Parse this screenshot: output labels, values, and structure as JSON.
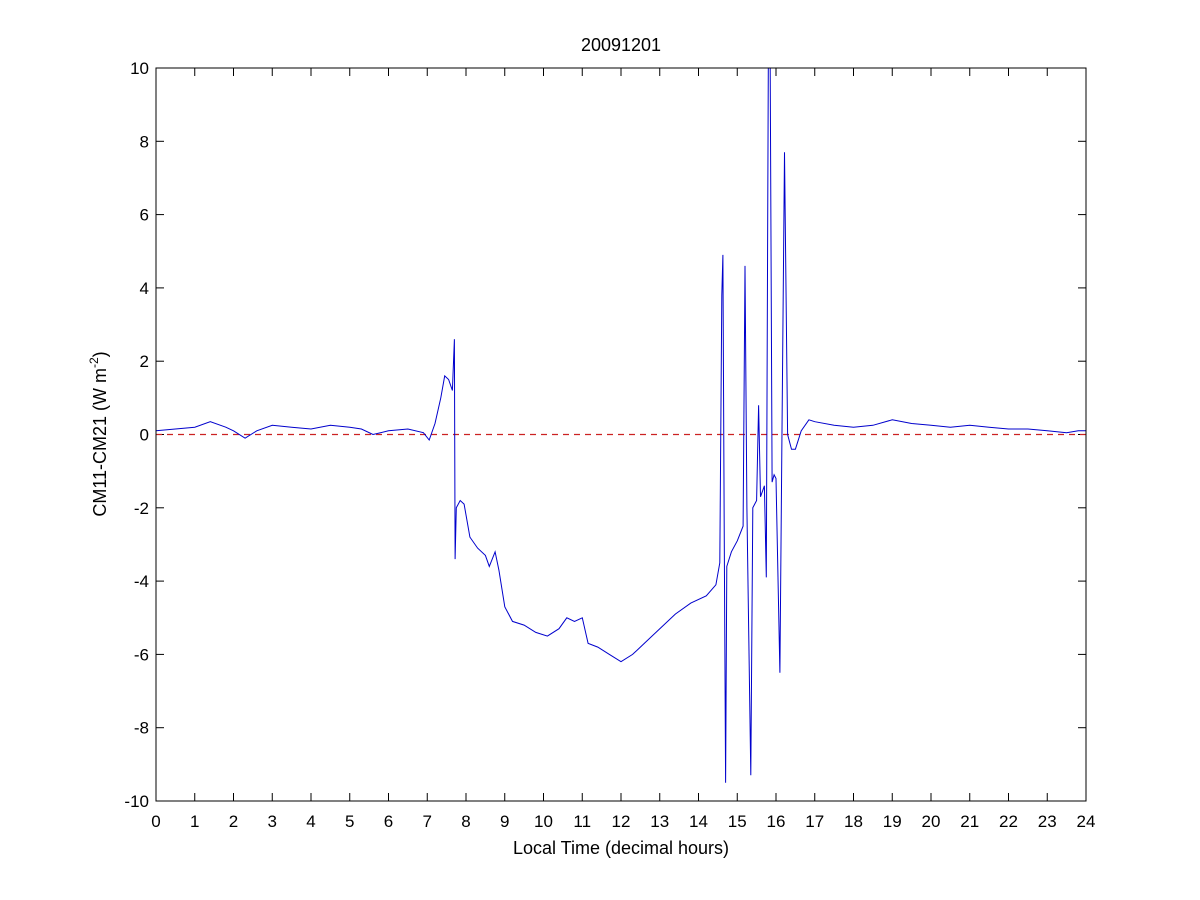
{
  "chart_data": {
    "type": "line",
    "title": "20091201",
    "xlabel": "Local Time (decimal hours)",
    "ylabel": {
      "main": "CM11-CM21 (W m",
      "superscript": "-2",
      "suffix": ")"
    },
    "xlim": [
      0,
      24
    ],
    "ylim": [
      -10,
      10
    ],
    "xticks": [
      0,
      1,
      2,
      3,
      4,
      5,
      6,
      7,
      8,
      9,
      10,
      11,
      12,
      13,
      14,
      15,
      16,
      17,
      18,
      19,
      20,
      21,
      22,
      23,
      24
    ],
    "yticks": [
      -10,
      -8,
      -6,
      -4,
      -2,
      0,
      2,
      4,
      6,
      8,
      10
    ],
    "grid": false,
    "legend": "none",
    "colors": {
      "series": "#0000cc",
      "reference": "#cc2222"
    },
    "reference_line": {
      "y": 0,
      "style": "dashed"
    },
    "series": [
      {
        "color": "#0000cc",
        "points": [
          [
            0.0,
            0.1
          ],
          [
            0.5,
            0.15
          ],
          [
            1.0,
            0.2
          ],
          [
            1.4,
            0.35
          ],
          [
            1.8,
            0.2
          ],
          [
            2.0,
            0.1
          ],
          [
            2.3,
            -0.1
          ],
          [
            2.6,
            0.1
          ],
          [
            3.0,
            0.25
          ],
          [
            3.5,
            0.2
          ],
          [
            4.0,
            0.15
          ],
          [
            4.5,
            0.25
          ],
          [
            5.0,
            0.2
          ],
          [
            5.3,
            0.15
          ],
          [
            5.6,
            0.0
          ],
          [
            6.0,
            0.1
          ],
          [
            6.5,
            0.15
          ],
          [
            6.9,
            0.05
          ],
          [
            7.05,
            -0.15
          ],
          [
            7.2,
            0.3
          ],
          [
            7.35,
            1.0
          ],
          [
            7.45,
            1.6
          ],
          [
            7.55,
            1.5
          ],
          [
            7.65,
            1.2
          ],
          [
            7.7,
            2.6
          ],
          [
            7.72,
            -3.4
          ],
          [
            7.75,
            -2.0
          ],
          [
            7.85,
            -1.8
          ],
          [
            7.95,
            -1.9
          ],
          [
            8.1,
            -2.8
          ],
          [
            8.3,
            -3.1
          ],
          [
            8.5,
            -3.3
          ],
          [
            8.6,
            -3.6
          ],
          [
            8.75,
            -3.2
          ],
          [
            8.85,
            -3.7
          ],
          [
            9.0,
            -4.7
          ],
          [
            9.2,
            -5.1
          ],
          [
            9.5,
            -5.2
          ],
          [
            9.8,
            -5.4
          ],
          [
            10.1,
            -5.5
          ],
          [
            10.4,
            -5.3
          ],
          [
            10.6,
            -5.0
          ],
          [
            10.8,
            -5.1
          ],
          [
            11.0,
            -5.0
          ],
          [
            11.15,
            -5.7
          ],
          [
            11.4,
            -5.8
          ],
          [
            11.7,
            -6.0
          ],
          [
            12.0,
            -6.2
          ],
          [
            12.3,
            -6.0
          ],
          [
            12.6,
            -5.7
          ],
          [
            13.0,
            -5.3
          ],
          [
            13.4,
            -4.9
          ],
          [
            13.8,
            -4.6
          ],
          [
            14.2,
            -4.4
          ],
          [
            14.45,
            -4.1
          ],
          [
            14.55,
            -3.5
          ],
          [
            14.6,
            3.8
          ],
          [
            14.63,
            4.9
          ],
          [
            14.66,
            -2.0
          ],
          [
            14.7,
            -9.5
          ],
          [
            14.73,
            -3.6
          ],
          [
            14.85,
            -3.2
          ],
          [
            15.0,
            -2.9
          ],
          [
            15.15,
            -2.5
          ],
          [
            15.2,
            4.6
          ],
          [
            15.25,
            -2.0
          ],
          [
            15.35,
            -9.3
          ],
          [
            15.4,
            -2.0
          ],
          [
            15.5,
            -1.8
          ],
          [
            15.55,
            0.8
          ],
          [
            15.6,
            -1.7
          ],
          [
            15.7,
            -1.4
          ],
          [
            15.75,
            -3.9
          ],
          [
            15.8,
            10.0
          ],
          [
            15.85,
            10.0
          ],
          [
            15.9,
            -1.3
          ],
          [
            15.95,
            -1.1
          ],
          [
            16.0,
            -1.2
          ],
          [
            16.1,
            -6.5
          ],
          [
            16.15,
            -0.5
          ],
          [
            16.22,
            7.7
          ],
          [
            16.3,
            0.0
          ],
          [
            16.4,
            -0.4
          ],
          [
            16.5,
            -0.4
          ],
          [
            16.65,
            0.1
          ],
          [
            16.85,
            0.4
          ],
          [
            17.0,
            0.35
          ],
          [
            17.5,
            0.25
          ],
          [
            18.0,
            0.2
          ],
          [
            18.5,
            0.25
          ],
          [
            19.0,
            0.4
          ],
          [
            19.5,
            0.3
          ],
          [
            20.0,
            0.25
          ],
          [
            20.5,
            0.2
          ],
          [
            21.0,
            0.25
          ],
          [
            21.5,
            0.2
          ],
          [
            22.0,
            0.15
          ],
          [
            22.5,
            0.15
          ],
          [
            23.0,
            0.1
          ],
          [
            23.5,
            0.05
          ],
          [
            23.8,
            0.1
          ],
          [
            24.0,
            0.1
          ]
        ]
      }
    ]
  }
}
